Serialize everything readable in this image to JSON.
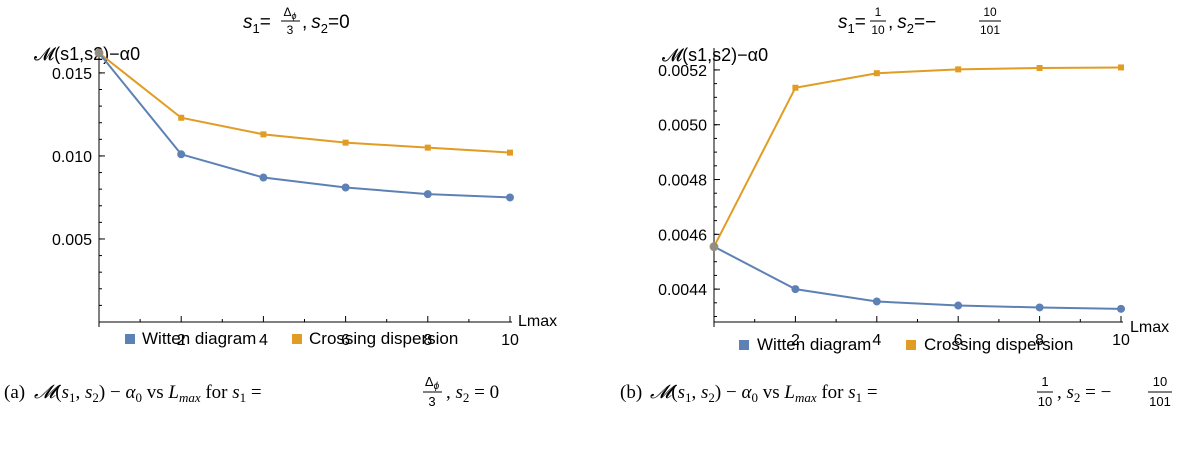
{
  "colors": {
    "witten": "#5E81B5",
    "crossing": "#E19C24",
    "axis": "#000000"
  },
  "legend": {
    "witten": "Witten diagram",
    "crossing": "Crossing dispersion"
  },
  "panels": [
    {
      "title": {
        "s1_prefix": "s",
        "s1_sub": "1",
        "eq1": "=",
        "frac_num": "Δ",
        "frac_num_sub": "ϕ",
        "frac_den": "3",
        "comma": ",",
        "s2_prefix": "s",
        "s2_sub": "2",
        "s2_val": "=0"
      },
      "ylabel": "𝓜(s1,s2)−α0",
      "xlabel": "Lmax",
      "caption": "(a) 𝓜(s1, s2) − α0 vs Lmax for s1 = Δϕ/3 , s2 = 0",
      "caption_parts": {
        "lead": "(a) ",
        "tail": " for s₁ = Δ_ϕ/3 , s₂ = 0"
      }
    },
    {
      "title": {
        "s1_prefix": "s",
        "s1_sub": "1",
        "eq1": "=",
        "frac_num": "1",
        "frac_den": "10",
        "comma": ",",
        "s2_prefix": "s",
        "s2_sub": "2",
        "s2_eq": "=−",
        "frac2_num": "10",
        "frac2_den": "101"
      },
      "ylabel": "𝓜(s1,s2)−α0",
      "xlabel": "Lmax",
      "caption_parts": {
        "lead": "(b) ",
        "tail": " for s₁ = 1/10 , s₂ = −10/101"
      }
    }
  ],
  "chart_data": [
    {
      "type": "line",
      "x": [
        0,
        2,
        4,
        6,
        8,
        10
      ],
      "xticks": [
        "2",
        "4",
        "6",
        "8",
        "10"
      ],
      "yticks": [
        "0.005",
        "0.010",
        "0.015"
      ],
      "xlim": [
        0,
        10.5
      ],
      "ylim": [
        0,
        0.0165
      ],
      "series": [
        {
          "name": "Witten diagram",
          "values": [
            0.0162,
            0.0101,
            0.0087,
            0.0081,
            0.0077,
            0.0075
          ]
        },
        {
          "name": "Crossing dispersion",
          "values": [
            0.0162,
            0.0123,
            0.0113,
            0.0108,
            0.0105,
            0.0102
          ]
        }
      ],
      "legend": "bottom",
      "grid": false
    },
    {
      "type": "line",
      "x": [
        0,
        2,
        4,
        6,
        8,
        10
      ],
      "xticks": [
        "2",
        "4",
        "6",
        "8",
        "10"
      ],
      "yticks": [
        "0.0044",
        "0.0046",
        "0.0048",
        "0.0050",
        "0.0052"
      ],
      "xlim": [
        0,
        10.5
      ],
      "ylim": [
        0.00428,
        0.00528
      ],
      "series": [
        {
          "name": "Witten diagram",
          "values": [
            0.004555,
            0.0044,
            0.004355,
            0.00434,
            0.004333,
            0.004328
          ]
        },
        {
          "name": "Crossing dispersion",
          "values": [
            0.004555,
            0.005135,
            0.005188,
            0.005202,
            0.005207,
            0.005209
          ]
        }
      ],
      "legend": "bottom",
      "grid": false
    }
  ]
}
